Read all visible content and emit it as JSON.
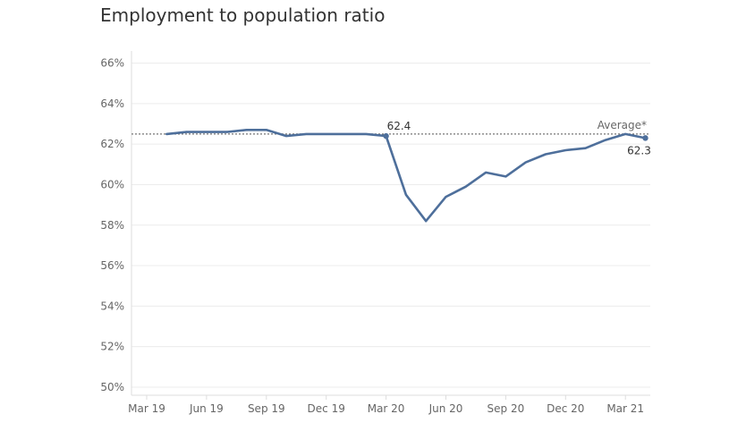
{
  "chart_data": {
    "type": "line",
    "title": "Employment to population ratio",
    "xlabel": "",
    "ylabel": "",
    "ylim": [
      49.6,
      66.6
    ],
    "yticks": [
      {
        "value": 66,
        "label": "66%"
      },
      {
        "value": 64,
        "label": "64%"
      },
      {
        "value": 62,
        "label": "62%"
      },
      {
        "value": 60,
        "label": "60%"
      },
      {
        "value": 58,
        "label": "58%"
      },
      {
        "value": 56,
        "label": "56%"
      },
      {
        "value": 54,
        "label": "54%"
      },
      {
        "value": 52,
        "label": "52%"
      },
      {
        "value": 50,
        "label": "50%"
      }
    ],
    "xticks": [
      "Mar 19",
      "Jun 19",
      "Sep 19",
      "Dec 19",
      "Mar 20",
      "Jun 20",
      "Sep 20",
      "Dec 20",
      "Mar 21"
    ],
    "x": [
      "Mar 19",
      "Apr 19",
      "May 19",
      "Jun 19",
      "Jul 19",
      "Aug 19",
      "Sep 19",
      "Oct 19",
      "Nov 19",
      "Dec 19",
      "Jan 20",
      "Feb 20",
      "Mar 20",
      "Apr 20",
      "May 20",
      "Jun 20",
      "Jul 20",
      "Aug 20",
      "Sep 20",
      "Oct 20",
      "Nov 20",
      "Dec 20",
      "Jan 21",
      "Feb 21",
      "Mar 21",
      "Apr 21"
    ],
    "series": [
      {
        "values": [
          null,
          62.5,
          62.6,
          62.6,
          62.6,
          62.7,
          62.7,
          62.4,
          62.5,
          62.5,
          62.5,
          62.5,
          62.4,
          59.5,
          58.2,
          59.4,
          59.9,
          60.6,
          60.4,
          61.1,
          61.5,
          61.7,
          61.8,
          62.2,
          62.5,
          62.3
        ],
        "color": "#4e6f9b"
      }
    ],
    "reference_line": {
      "label": "Average*",
      "value": 62.5
    },
    "annotations": [
      {
        "x": "Mar 20",
        "label": "62.4"
      },
      {
        "x": "Apr 21",
        "label": "62.3"
      }
    ],
    "grid": true,
    "colors": {
      "line": "#4e6f9b",
      "grid": "#ececec",
      "axis": "#dddddd",
      "reference": "#777777"
    }
  }
}
